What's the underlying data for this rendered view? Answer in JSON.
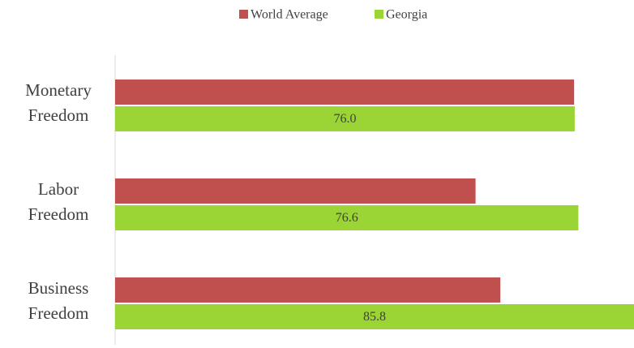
{
  "chart_data": {
    "type": "bar",
    "orientation": "horizontal",
    "categories": [
      "Monetary Freedom",
      "Labor Freedom",
      "Business Freedom"
    ],
    "series": [
      {
        "name": "World Average",
        "color": "#c0504d",
        "values": [
          75.9,
          59.6,
          63.7
        ]
      },
      {
        "name": "Georgia",
        "color": "#9bd535",
        "values": [
          76,
          76.6,
          85.8
        ],
        "value_labels": [
          "76.0",
          "76.6",
          "85.8"
        ]
      }
    ],
    "legend": "top"
  }
}
